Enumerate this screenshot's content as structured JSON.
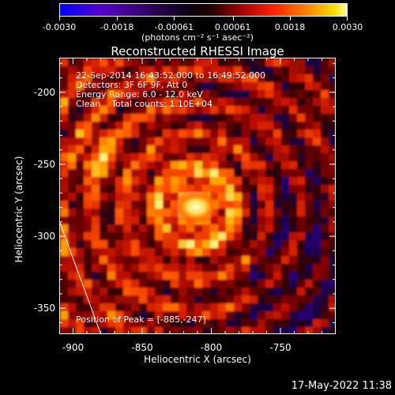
{
  "colorbar": {
    "tick_labels": [
      "-0.0030",
      "-0.0018",
      "-0.00061",
      "0.00061",
      "0.0018",
      "0.0030"
    ],
    "tick_values": [
      -0.003,
      -0.0018,
      -0.00061,
      0.00061,
      0.0018,
      0.003
    ],
    "range": [
      -0.003,
      0.003
    ],
    "units": "(photons cm⁻² s⁻¹ asec⁻²)",
    "colors": [
      "#0000ff",
      "#7a00aa",
      "#220044",
      "#000000",
      "#330000",
      "#aa0000",
      "#ff2200",
      "#ff8800",
      "#ffd000",
      "#ffffa0"
    ]
  },
  "title": "Reconstructed RHESSI Image",
  "annotation": {
    "time_range": "22-Sep-2014 16:43:52.000 to 16:49:52.000",
    "detectors": "Detectors: 3F 6F 9F, Att 0",
    "energy": "Energy Range: 6.0 - 12.0 keV",
    "clean": "Clean    Total counts: 1.10E+04",
    "peak": "Position of Peak = [-885,-247]"
  },
  "chart_data": {
    "type": "heatmap",
    "title": "Reconstructed RHESSI Image",
    "xlabel": "Heliocentric X (arcsec)",
    "ylabel": "Heliocentric Y (arcsec)",
    "xlim": [
      -910,
      -710
    ],
    "ylim": [
      -368,
      -176
    ],
    "x_ticks": [
      -900,
      -850,
      -800,
      -750
    ],
    "y_ticks": [
      -200,
      -250,
      -300,
      -350
    ],
    "x_tick_labels": [
      "-900",
      "-850",
      "-800",
      "-750"
    ],
    "y_tick_labels": [
      "-200",
      "-250",
      "-300",
      "-350"
    ],
    "peak_position": [
      -885,
      -247
    ],
    "total_counts": 11000,
    "energy_range_kev": [
      6.0,
      12.0
    ]
  },
  "timestamp": "17-May-2022 11:38"
}
